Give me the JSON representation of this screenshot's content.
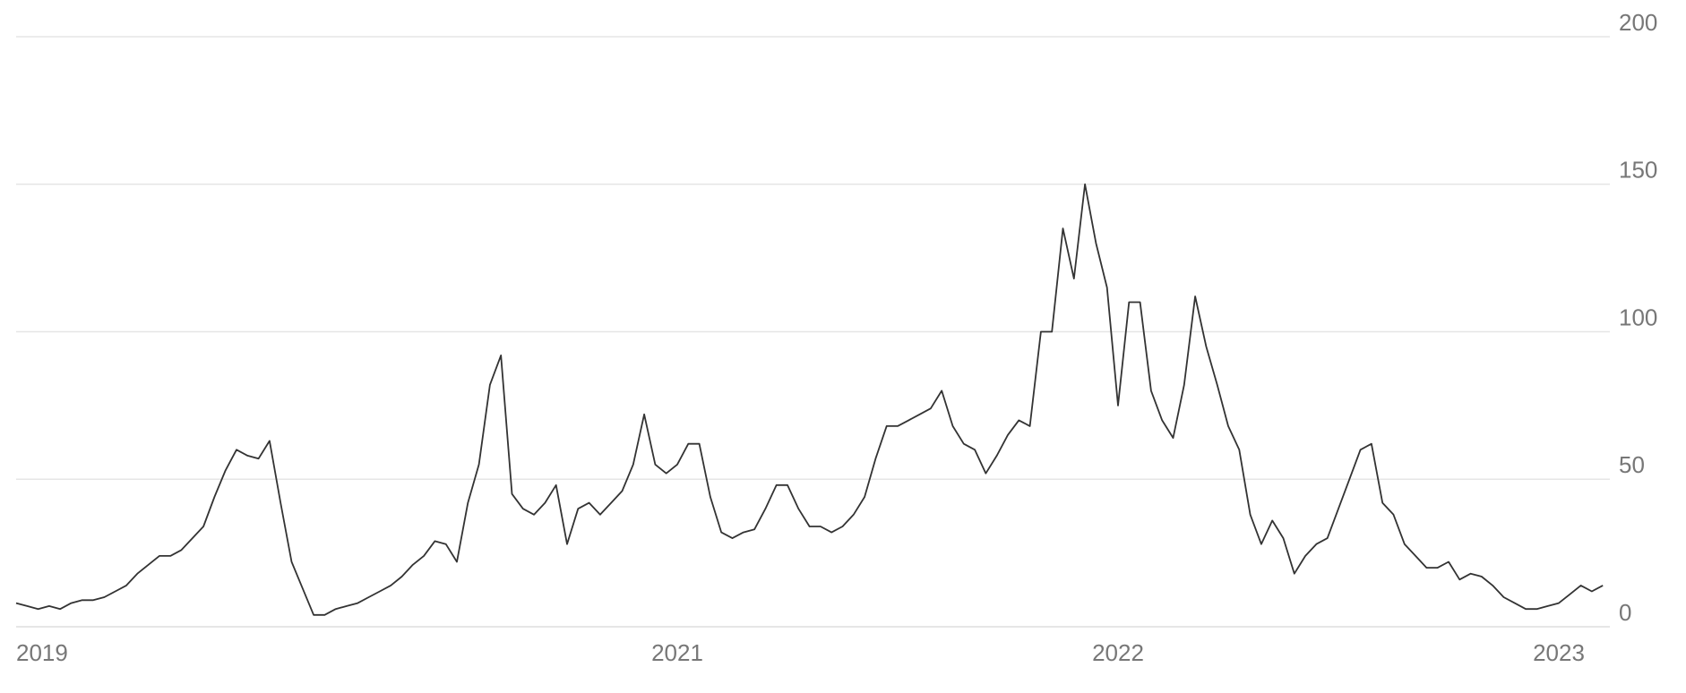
{
  "chart_data": {
    "type": "line",
    "categories": [
      "2019",
      null,
      null,
      null,
      null,
      null,
      null,
      null,
      null,
      null,
      null,
      null,
      null,
      null,
      null,
      null,
      null,
      null,
      null,
      null,
      null,
      null,
      null,
      null,
      null,
      null,
      null,
      null,
      null,
      null,
      null,
      null,
      null,
      null,
      null,
      null,
      null,
      null,
      null,
      null,
      null,
      null,
      null,
      null,
      null,
      null,
      null,
      null,
      null,
      null,
      null,
      null,
      null,
      null,
      null,
      null,
      null,
      null,
      null,
      null,
      "2021",
      null,
      null,
      null,
      null,
      null,
      null,
      null,
      null,
      null,
      null,
      null,
      null,
      null,
      null,
      null,
      null,
      null,
      null,
      null,
      null,
      null,
      null,
      null,
      null,
      null,
      null,
      null,
      null,
      null,
      null,
      null,
      null,
      null,
      null,
      null,
      null,
      null,
      null,
      null,
      "2022",
      null,
      null,
      null,
      null,
      null,
      null,
      null,
      null,
      null,
      null,
      null,
      null,
      null,
      null,
      null,
      null,
      null,
      null,
      null,
      null,
      null,
      null,
      null,
      null,
      null,
      null,
      null,
      null,
      null,
      null,
      null,
      null,
      null,
      null,
      null,
      null,
      null,
      null,
      null,
      "2023",
      null,
      null,
      null,
      null
    ],
    "series": [
      {
        "color": "#333333",
        "values": [
          8,
          7,
          6,
          7,
          6,
          8,
          9,
          9,
          10,
          12,
          14,
          18,
          21,
          24,
          24,
          26,
          30,
          34,
          44,
          53,
          60,
          58,
          57,
          63,
          42,
          22,
          13,
          4,
          4,
          6,
          7,
          8,
          10,
          12,
          14,
          17,
          21,
          24,
          29,
          28,
          22,
          42,
          55,
          82,
          92,
          45,
          40,
          38,
          42,
          48,
          28,
          40,
          42,
          38,
          42,
          46,
          55,
          72,
          55,
          52,
          55,
          62,
          62,
          44,
          32,
          30,
          32,
          33,
          40,
          48,
          48,
          40,
          34,
          34,
          32,
          34,
          38,
          44,
          57,
          68,
          68,
          70,
          72,
          74,
          80,
          68,
          62,
          60,
          52,
          58,
          65,
          70,
          68,
          100,
          100,
          135,
          118,
          150,
          130,
          115,
          75,
          110,
          110,
          80,
          70,
          64,
          82,
          112,
          95,
          82,
          68,
          60,
          38,
          28,
          36,
          30,
          18,
          24,
          28,
          30,
          40,
          50,
          60,
          62,
          42,
          38,
          28,
          24,
          20,
          20,
          22,
          16,
          18,
          17,
          14,
          10,
          8,
          6,
          6,
          7,
          8,
          11,
          14,
          12,
          14
        ]
      }
    ],
    "ylim": [
      0,
      200
    ],
    "yticks": [
      0,
      50,
      100,
      150,
      200
    ],
    "grid": true
  }
}
